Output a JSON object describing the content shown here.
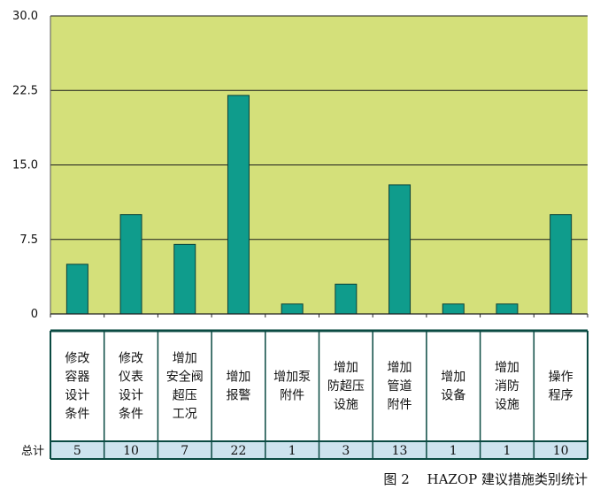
{
  "chart_data": {
    "type": "bar",
    "categories": [
      [
        "修改",
        "容器",
        "设计",
        "条件"
      ],
      [
        "修改",
        "仪表",
        "设计",
        "条件"
      ],
      [
        "增加",
        "安全阀",
        "超压",
        "工况"
      ],
      [
        "增加",
        "报警"
      ],
      [
        "增加泵",
        "附件"
      ],
      [
        "增加",
        "防超压",
        "设施"
      ],
      [
        "增加",
        "管道",
        "附件"
      ],
      [
        "增加",
        "设备"
      ],
      [
        "增加",
        "消防",
        "设施"
      ],
      [
        "操作",
        "程序"
      ]
    ],
    "values": [
      5,
      10,
      7,
      22,
      1,
      3,
      13,
      1,
      1,
      10
    ],
    "total_labels": [
      "5",
      "10",
      "7",
      "22",
      "1",
      "3",
      "13",
      "1",
      "1",
      "10"
    ],
    "total_row_label": "总计",
    "ylim": [
      0,
      30
    ],
    "yticks": [
      "0",
      "7.5",
      "15.0",
      "22.5",
      "30.0"
    ],
    "ytick_values": [
      0,
      7.5,
      15,
      22.5,
      30
    ],
    "grid": true,
    "colors": {
      "plot_bg": "#d4e07a",
      "bar": "#0f9c8c",
      "bar_edge": "#0a3f38",
      "table_bg": "#ffffff",
      "total_bg": "#cde3ee",
      "table_border": "#0a4a42"
    }
  },
  "caption": "图 2　 HAZOP 建议措施类别统计"
}
